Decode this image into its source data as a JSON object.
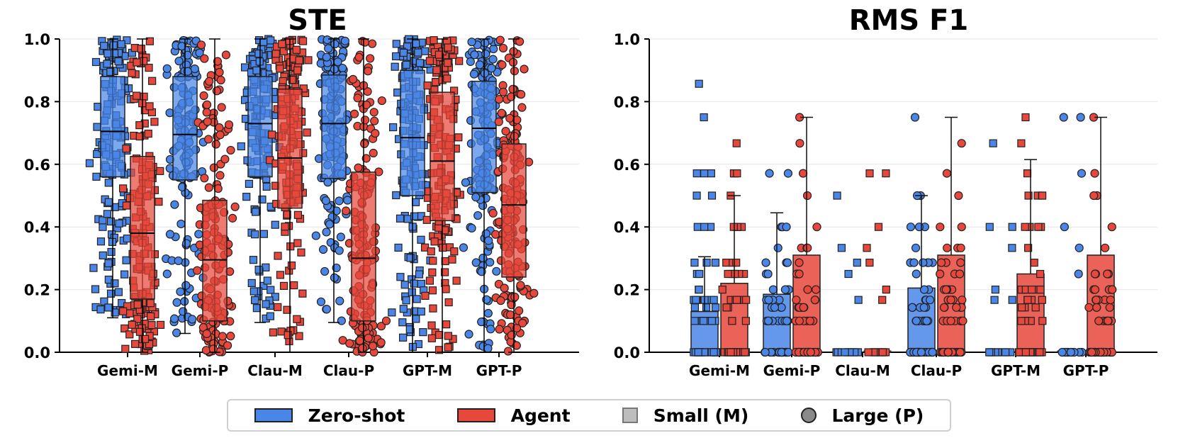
{
  "colors": {
    "zero_shot": "#4a86e8",
    "agent": "#e8483b",
    "edge": "#222222",
    "grid": "#e6e6e6"
  },
  "legend": {
    "items": [
      {
        "label": "Zero-shot",
        "swatch": "rect",
        "color": "#4a86e8"
      },
      {
        "label": "Agent",
        "swatch": "rect",
        "color": "#e8483b"
      },
      {
        "label": "Small (M)",
        "swatch": "square",
        "color": "#bdbdbd"
      },
      {
        "label": "Large (P)",
        "swatch": "circle",
        "color": "#8a8a8a"
      }
    ],
    "placement": "bottom-center"
  },
  "chart_data": [
    {
      "type": "box",
      "title": "STE",
      "xlabel": "",
      "ylabel": "",
      "ylim": [
        0,
        1
      ],
      "yticks": [
        "0.0",
        "0.2",
        "0.4",
        "0.6",
        "0.8",
        "1.0"
      ],
      "grid": true,
      "categories": [
        "Gemi-M",
        "Gemi-P",
        "Clau-M",
        "Clau-P",
        "GPT-M",
        "GPT-P"
      ],
      "series": [
        {
          "name": "Zero-shot",
          "boxes": [
            {
              "q1": 0.56,
              "median": 0.705,
              "q3": 0.88,
              "whisker_low": 0.11,
              "whisker_high": 1.0
            },
            {
              "q1": 0.55,
              "median": 0.695,
              "q3": 0.88,
              "whisker_low": 0.06,
              "whisker_high": 1.0
            },
            {
              "q1": 0.56,
              "median": 0.73,
              "q3": 0.88,
              "whisker_low": 0.095,
              "whisker_high": 1.0
            },
            {
              "q1": 0.555,
              "median": 0.73,
              "q3": 0.885,
              "whisker_low": 0.095,
              "whisker_high": 1.0
            },
            {
              "q1": 0.5,
              "median": 0.685,
              "q3": 0.9,
              "whisker_low": 0.0,
              "whisker_high": 1.0
            },
            {
              "q1": 0.51,
              "median": 0.715,
              "q3": 0.865,
              "whisker_low": 0.0,
              "whisker_high": 1.0
            }
          ]
        },
        {
          "name": "Agent",
          "boxes": [
            {
              "q1": 0.17,
              "median": 0.38,
              "q3": 0.625,
              "whisker_low": 0.0,
              "whisker_high": 1.0
            },
            {
              "q1": 0.1,
              "median": 0.295,
              "q3": 0.485,
              "whisker_low": 0.0,
              "whisker_high": 1.0
            },
            {
              "q1": 0.46,
              "median": 0.62,
              "q3": 0.84,
              "whisker_low": 0.0,
              "whisker_high": 1.0
            },
            {
              "q1": 0.1,
              "median": 0.3,
              "q3": 0.575,
              "whisker_low": 0.0,
              "whisker_high": 1.0
            },
            {
              "q1": 0.42,
              "median": 0.61,
              "q3": 0.83,
              "whisker_low": 0.0,
              "whisker_high": 1.0
            },
            {
              "q1": 0.24,
              "median": 0.47,
              "q3": 0.665,
              "whisker_low": 0.0,
              "whisker_high": 1.0
            }
          ]
        }
      ],
      "points_per_group": 160
    },
    {
      "type": "bar",
      "title": "RMS F1",
      "xlabel": "",
      "ylabel": "",
      "ylim": [
        0,
        1
      ],
      "yticks": [
        "0.0",
        "0.2",
        "0.4",
        "0.6",
        "0.8",
        "1.0"
      ],
      "grid": true,
      "categories": [
        "Gemi-M",
        "Gemi-P",
        "Clau-M",
        "Clau-P",
        "GPT-M",
        "GPT-P"
      ],
      "series": [
        {
          "name": "Zero-shot",
          "values": [
            0.13,
            0.185,
            0.0,
            0.205,
            0.0,
            0.0
          ],
          "error_high": [
            0.305,
            0.445,
            0.0,
            0.5,
            0.0,
            0.0
          ]
        },
        {
          "name": "Agent",
          "values": [
            0.22,
            0.31,
            0.0,
            0.31,
            0.25,
            0.31
          ],
          "error_high": [
            0.5,
            0.75,
            0.0,
            0.75,
            0.615,
            0.75
          ]
        }
      ],
      "points_per_group": 60
    }
  ]
}
